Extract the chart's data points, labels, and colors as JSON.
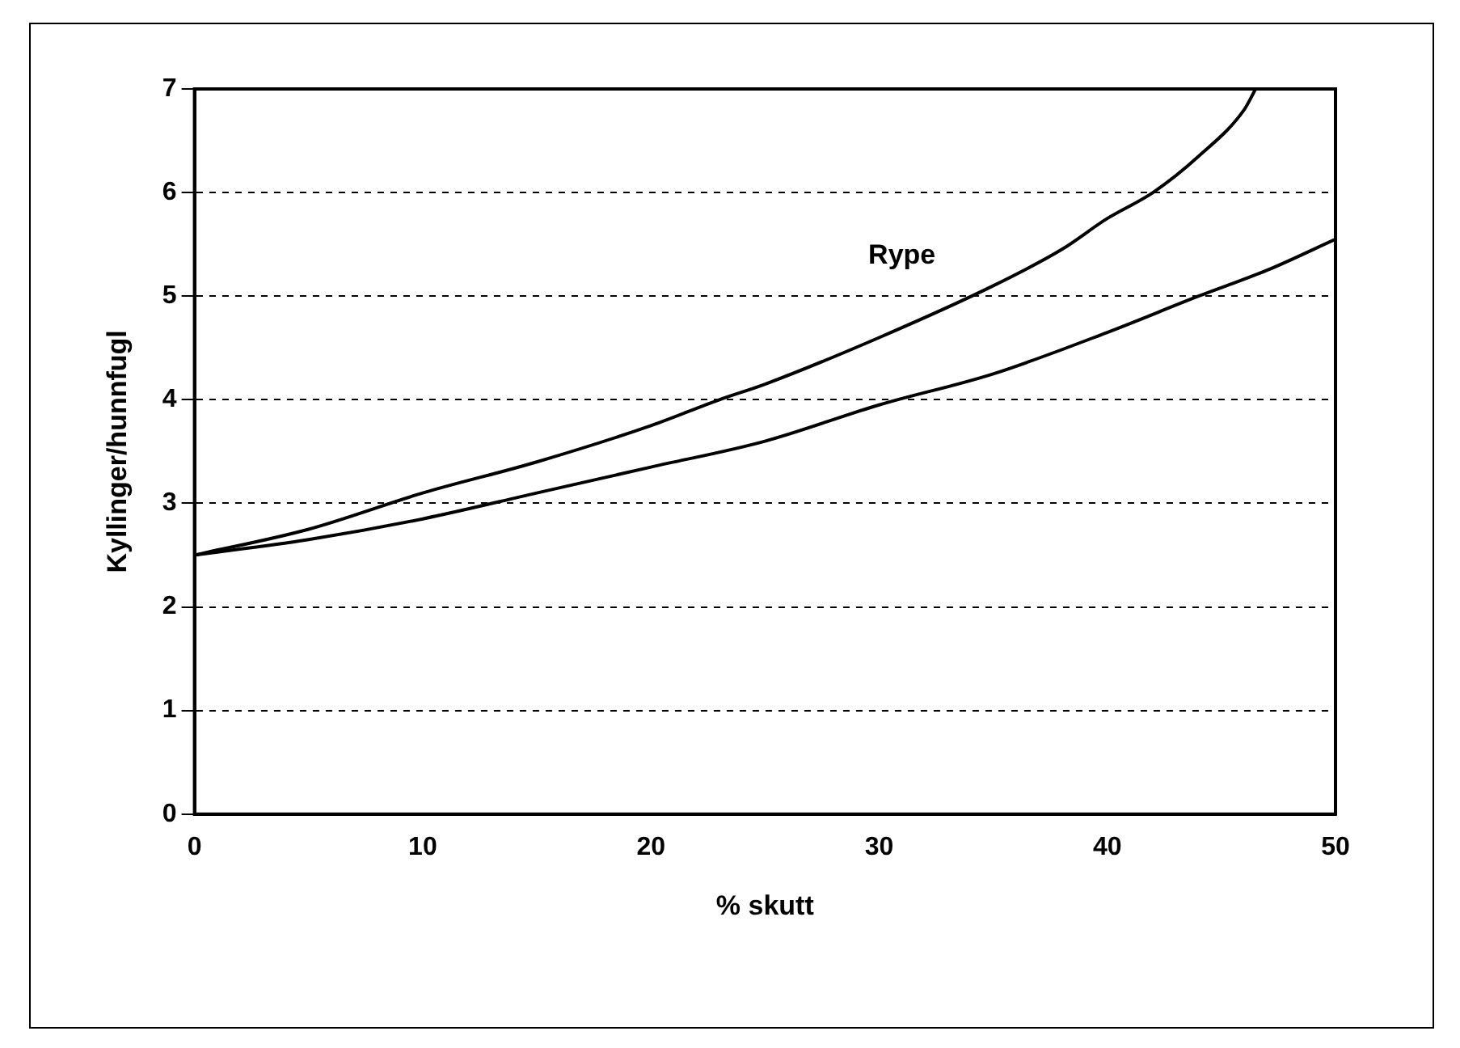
{
  "chart_data": {
    "type": "line",
    "xlabel": "% skutt",
    "ylabel": "Kyllinger/hunnfugl",
    "series": [
      {
        "color": "#000000",
        "x": [
          0,
          5,
          10,
          15,
          20,
          23,
          25,
          30,
          35,
          38,
          40,
          42,
          44,
          46,
          46.5
        ],
        "values": [
          2.5,
          2.75,
          3.1,
          3.4,
          3.75,
          4.0,
          4.15,
          4.6,
          5.1,
          5.45,
          5.75,
          6.0,
          6.35,
          6.8,
          7.0
        ]
      },
      {
        "color": "#000000",
        "x": [
          0,
          5,
          10,
          15,
          20,
          25,
          30,
          35,
          40,
          44,
          47,
          50
        ],
        "values": [
          2.5,
          2.65,
          2.85,
          3.1,
          3.35,
          3.6,
          3.95,
          4.25,
          4.65,
          5.0,
          5.25,
          5.55
        ]
      }
    ],
    "annotations": [
      "Rype"
    ],
    "xlim": [
      0,
      50
    ],
    "xticks": [
      0,
      10,
      20,
      30,
      40,
      50
    ],
    "ylim": [
      0,
      7
    ],
    "yticks": [
      0,
      1,
      2,
      3,
      4,
      5,
      6,
      7
    ],
    "grid": "y",
    "legend": false,
    "marker": "none",
    "line_style": "solid"
  }
}
